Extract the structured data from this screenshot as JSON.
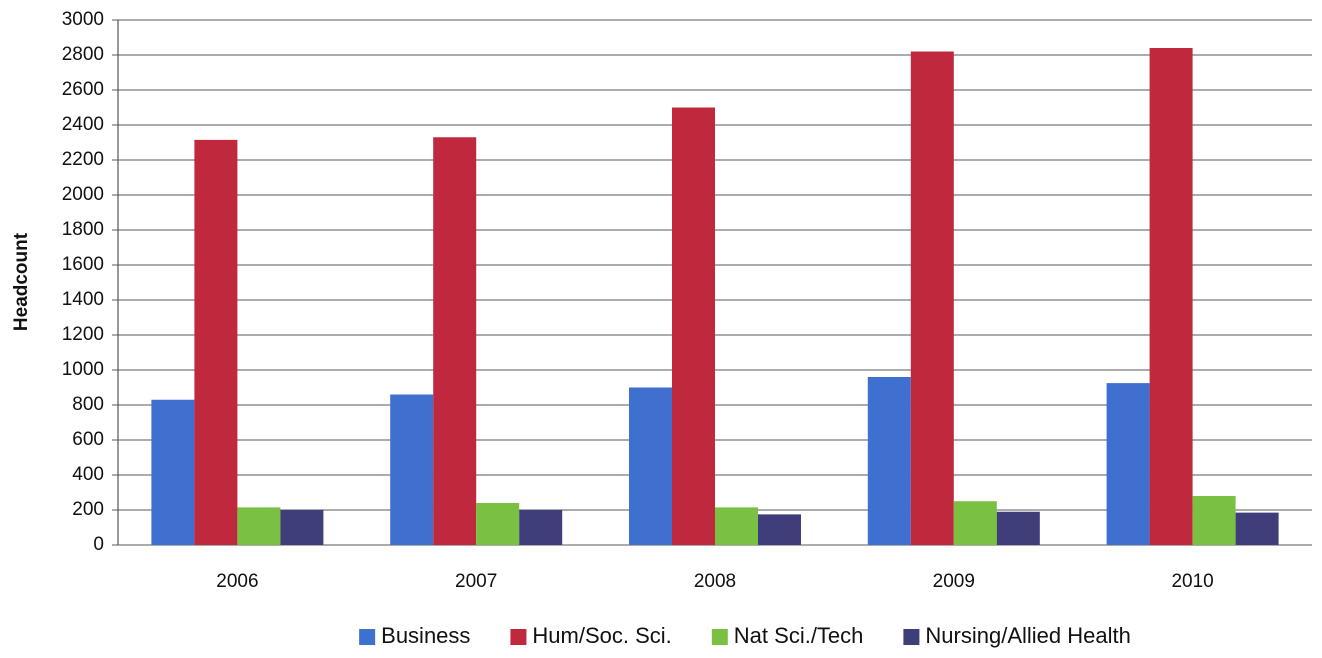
{
  "chart_data": {
    "type": "bar",
    "y_label": "Headcount",
    "categories": [
      "2006",
      "2007",
      "2008",
      "2009",
      "2010"
    ],
    "series": [
      {
        "name": "Business",
        "color": "#3f6fcf",
        "values": [
          830,
          860,
          900,
          960,
          925
        ]
      },
      {
        "name": "Hum/Soc. Sci.",
        "color": "#c0283e",
        "values": [
          2315,
          2330,
          2500,
          2820,
          2840
        ]
      },
      {
        "name": "Nat Sci./Tech",
        "color": "#7ac143",
        "values": [
          215,
          240,
          215,
          250,
          280
        ]
      },
      {
        "name": "Nursing/Allied Health",
        "color": "#3f3d7a",
        "values": [
          200,
          200,
          175,
          190,
          185
        ]
      }
    ],
    "ylim": [
      0,
      3000
    ],
    "yticks": [
      0,
      200,
      400,
      600,
      800,
      1000,
      1200,
      1400,
      1600,
      1800,
      2000,
      2200,
      2400,
      2600,
      2800,
      3000
    ],
    "grid": true,
    "legend": "bottom"
  }
}
